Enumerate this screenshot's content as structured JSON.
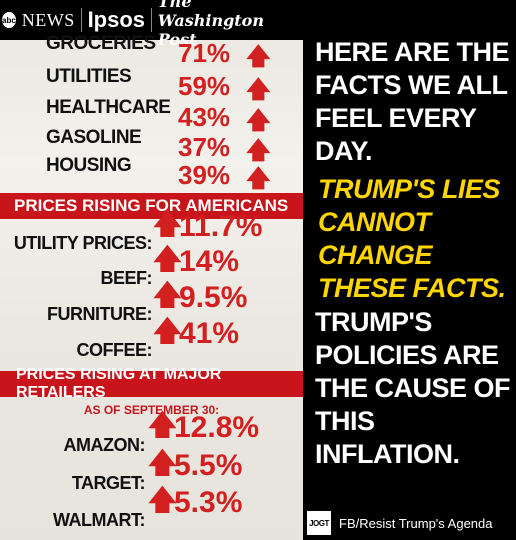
{
  "branding": {
    "abc": "abc",
    "news": "NEWS",
    "ipsos": "Ipsos",
    "wapo": "The Washington Post"
  },
  "top_stats": [
    {
      "label": "GROCERIES",
      "value": "71%"
    },
    {
      "label": "UTILITIES",
      "value": "59%"
    },
    {
      "label": "HEALTHCARE",
      "value": "43%"
    },
    {
      "label": "GASOLINE",
      "value": "37%"
    },
    {
      "label": "HOUSING",
      "value": "39%"
    }
  ],
  "section1": {
    "title": "PRICES RISING FOR AMERICANS",
    "items": [
      {
        "label": "UTILITY PRICES:",
        "value": "11.7%"
      },
      {
        "label": "BEEF:",
        "value": "14%"
      },
      {
        "label": "FURNITURE:",
        "value": "9.5%"
      },
      {
        "label": "COFFEE:",
        "value": "41%"
      }
    ]
  },
  "section2": {
    "title": "PRICES RISING AT MAJOR RETAILERS",
    "subtitle": "AS OF SEPTEMBER 30:",
    "items": [
      {
        "label": "AMAZON:",
        "value": "12.8%"
      },
      {
        "label": "TARGET:",
        "value": "5.5%"
      },
      {
        "label": "WALMART:",
        "value": "5.3%"
      }
    ]
  },
  "right": {
    "block1": [
      "HERE ARE THE",
      "FACTS WE ALL",
      "FEEL EVERY DAY."
    ],
    "block2": [
      "TRUMP'S LIES",
      "CANNOT CHANGE",
      "THESE FACTS."
    ],
    "block3": [
      "TRUMP'S",
      "POLICIES ARE",
      "THE CAUSE OF",
      "THIS INFLATION."
    ]
  },
  "footer": {
    "logo_text": "JOGT",
    "text": "FB/Resist Trump's Agenda"
  },
  "colors": {
    "accent_red": "#d21f1f",
    "banner_red": "#c8151b",
    "yellow": "#ffd500"
  }
}
